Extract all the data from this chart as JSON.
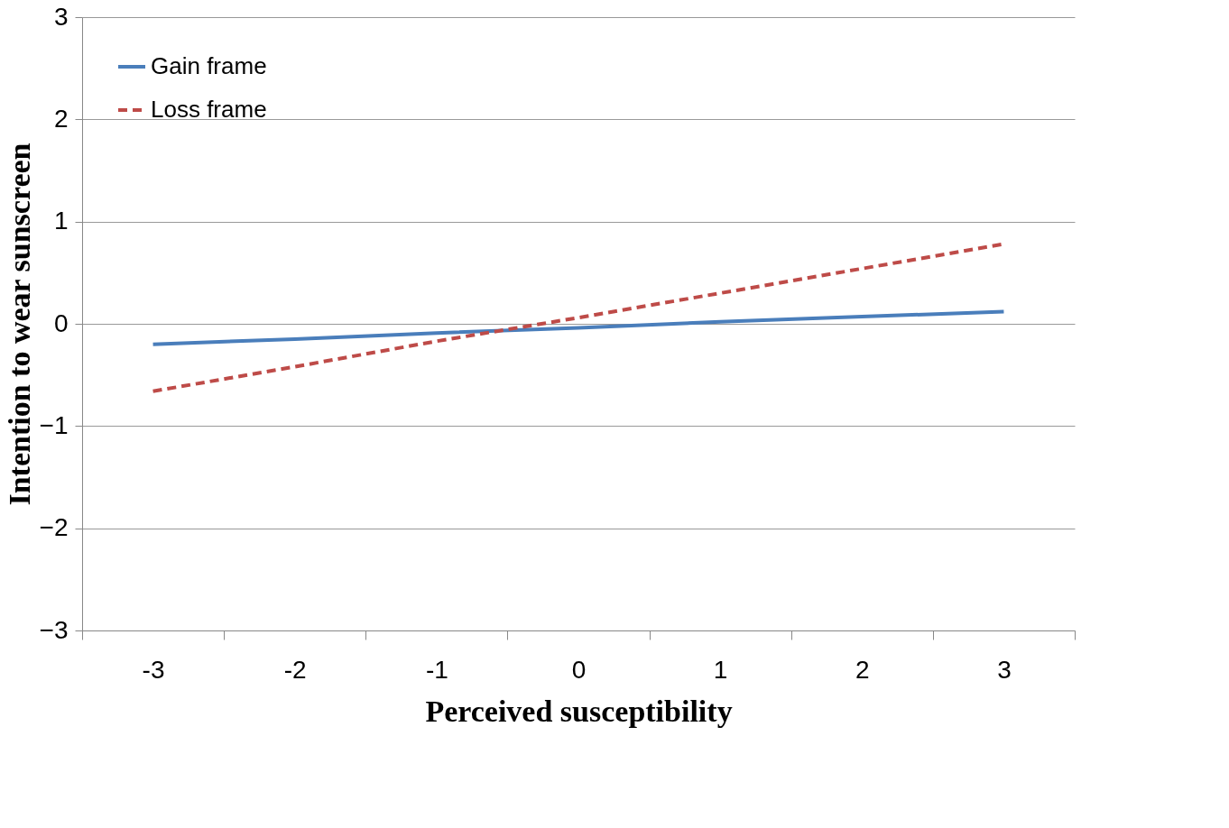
{
  "chart_data": {
    "type": "line",
    "xlabel": "Perceived susceptibility",
    "ylabel": "Intention to wear sunscreen",
    "categories": [
      "-3",
      "-2",
      "-1",
      "0",
      "1",
      "2",
      "3"
    ],
    "series": [
      {
        "name": "Gain frame",
        "color": "#4a7ebb",
        "line_style": "solid",
        "values": [
          -0.2,
          -0.15,
          -0.09,
          -0.04,
          0.02,
          0.07,
          0.12
        ]
      },
      {
        "name": "Loss frame",
        "color": "#be4b48",
        "line_style": "dashed",
        "values": [
          -0.66,
          -0.42,
          -0.17,
          0.06,
          0.3,
          0.54,
          0.78
        ]
      }
    ],
    "ylim": [
      -3,
      3
    ],
    "yticks": [
      -3,
      -2,
      -1,
      0,
      1,
      2,
      3
    ],
    "grid": "y",
    "legend": "top left",
    "marker": "none"
  }
}
